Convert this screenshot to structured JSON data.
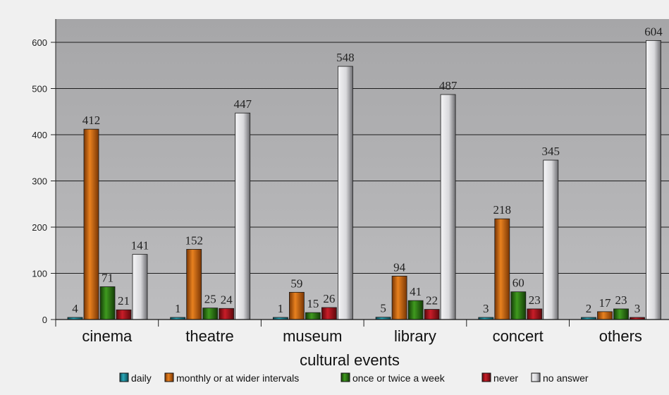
{
  "chart_data": {
    "type": "bar",
    "xlabel": "cultural events",
    "ylabel": "",
    "ylim": [
      0,
      630
    ],
    "yticks": [
      0,
      100,
      200,
      300,
      400,
      500,
      600
    ],
    "grid": true,
    "legend_position": "bottom",
    "categories": [
      "cinema",
      "theatre",
      "museum",
      "library",
      "concert",
      "others"
    ],
    "series": [
      {
        "name": "daily",
        "color": "#1a8a9a",
        "values": [
          4,
          1,
          1,
          5,
          3,
          2
        ]
      },
      {
        "name": "monthly or at wider intervals",
        "color": "#d2690e",
        "values": [
          412,
          152,
          59,
          94,
          218,
          17
        ]
      },
      {
        "name": "once or twice a week",
        "color": "#2e7d14",
        "values": [
          71,
          25,
          15,
          41,
          60,
          23
        ]
      },
      {
        "name": "never",
        "color": "#b0141e",
        "values": [
          21,
          24,
          26,
          22,
          23,
          3
        ]
      },
      {
        "name": "no answer",
        "color": "#c8c8cc",
        "values": [
          141,
          447,
          548,
          487,
          345,
          604
        ]
      }
    ],
    "series_extra": {
      "daily_label_values": [
        4,
        1,
        1,
        5,
        3,
        2
      ]
    }
  }
}
